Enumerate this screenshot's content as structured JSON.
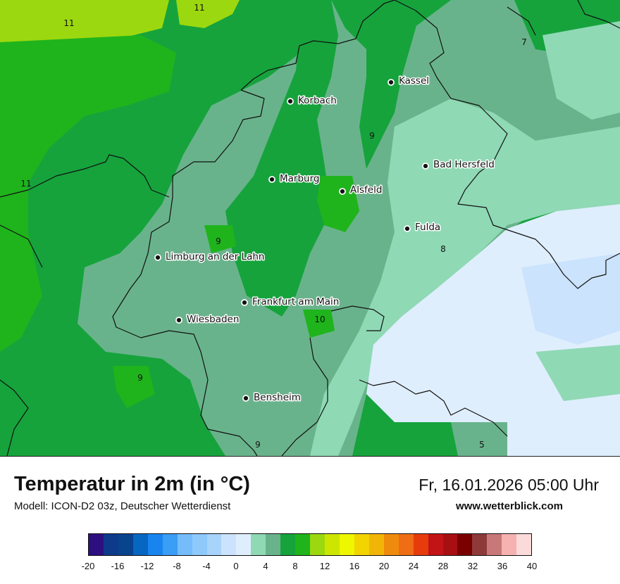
{
  "title": "Temperatur in 2m (in °C)",
  "subtitle": "Modell: ICON-D2 03z, Deutscher Wetterdienst",
  "datetime": "Fr, 16.01.2026 05:00 Uhr",
  "website": "www.wetterblick.com",
  "cities": [
    {
      "name": "Kassel"
    },
    {
      "name": "Korbach"
    },
    {
      "name": "Bad Hersfeld"
    },
    {
      "name": "Marburg"
    },
    {
      "name": "Alsfeld"
    },
    {
      "name": "Fulda"
    },
    {
      "name": "Limburg an der Lahn"
    },
    {
      "name": "Frankfurt am Main"
    },
    {
      "name": "Wiesbaden"
    },
    {
      "name": "Bensheim"
    }
  ],
  "isolabels": [
    "11",
    "11",
    "11",
    "9",
    "9",
    "8",
    "10",
    "9",
    "9",
    "5",
    "7"
  ],
  "legend": {
    "colors": [
      "#2e0f7f",
      "#0e3a8c",
      "#08438e",
      "#0766c2",
      "#1885ef",
      "#3a9df6",
      "#75bcfa",
      "#8fc9fb",
      "#a8d4fc",
      "#cbe3fc",
      "#dfeefd",
      "#8fd9b5",
      "#69b38c",
      "#16a33c",
      "#1fb41c",
      "#9cd80f",
      "#cde600",
      "#eef700",
      "#f2d400",
      "#f1b508",
      "#ef8b0c",
      "#ef6d14",
      "#e73b0b",
      "#c21416",
      "#a80f12",
      "#7a0000",
      "#8e3a3a",
      "#c87878",
      "#f6b1b1",
      "#fbdada"
    ],
    "ticks": [
      "-20",
      "-16",
      "-12",
      "-8",
      "-4",
      "0",
      "4",
      "8",
      "12",
      "16",
      "20",
      "24",
      "28",
      "32",
      "36",
      "40"
    ]
  }
}
